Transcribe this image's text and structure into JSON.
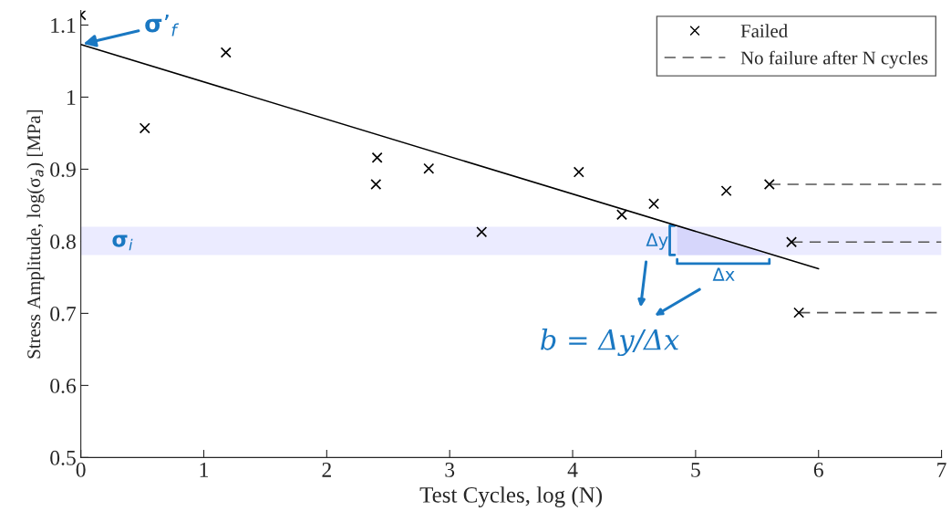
{
  "chart_data": {
    "type": "scatter",
    "xlabel": "Test Cycles, log (N)",
    "ylabel": "Stress Amplitude, log(σ$_{a}$) [MPa]",
    "xlim": [
      0,
      7
    ],
    "xticks": [
      0,
      1,
      2,
      3,
      4,
      5,
      6,
      7
    ],
    "ylim": [
      0.5,
      1.12
    ],
    "yticks": [
      0.5,
      0.6,
      0.7,
      0.8,
      0.9,
      1,
      1.1
    ],
    "grid": false,
    "legend": "top right",
    "series": [
      {
        "name": "Failed",
        "marker": "cross",
        "color": "#000000",
        "x": [
          0.0,
          0.52,
          1.18,
          2.41,
          2.4,
          2.83,
          3.26,
          4.05,
          4.4,
          4.66,
          5.25,
          5.6,
          5.78,
          5.84
        ],
        "values": [
          1.114,
          0.957,
          1.062,
          0.916,
          0.879,
          0.901,
          0.813,
          0.896,
          0.837,
          0.852,
          0.87,
          0.879,
          0.799,
          0.701
        ]
      },
      {
        "type": "line",
        "color": "#000000",
        "line_style": "solid",
        "x": [
          0,
          6
        ],
        "values": [
          1.073,
          0.762
        ]
      },
      {
        "name": "No failure after N cycles",
        "type": "line",
        "color": "#555555",
        "line_style": "dashed",
        "x": [
          5.6,
          7
        ],
        "values": [
          0.879,
          0.879
        ]
      },
      {
        "type": "line",
        "color": "#555555",
        "line_style": "dashed",
        "x": [
          5.78,
          7
        ],
        "values": [
          0.799,
          0.799
        ]
      },
      {
        "type": "line",
        "color": "#555555",
        "line_style": "dashed",
        "x": [
          5.84,
          7
        ],
        "values": [
          0.701,
          0.701
        ]
      }
    ],
    "bands": [
      {
        "axis": "y",
        "from": 0.781,
        "to": 0.82,
        "label": "σ$_{i}$",
        "color": "#ebebff"
      }
    ],
    "annotations": [
      {
        "text": "σ’$_{f}$",
        "x": 0,
        "y": 1.073
      },
      "Δy",
      "Δx",
      "b = Δy/Δx"
    ]
  }
}
